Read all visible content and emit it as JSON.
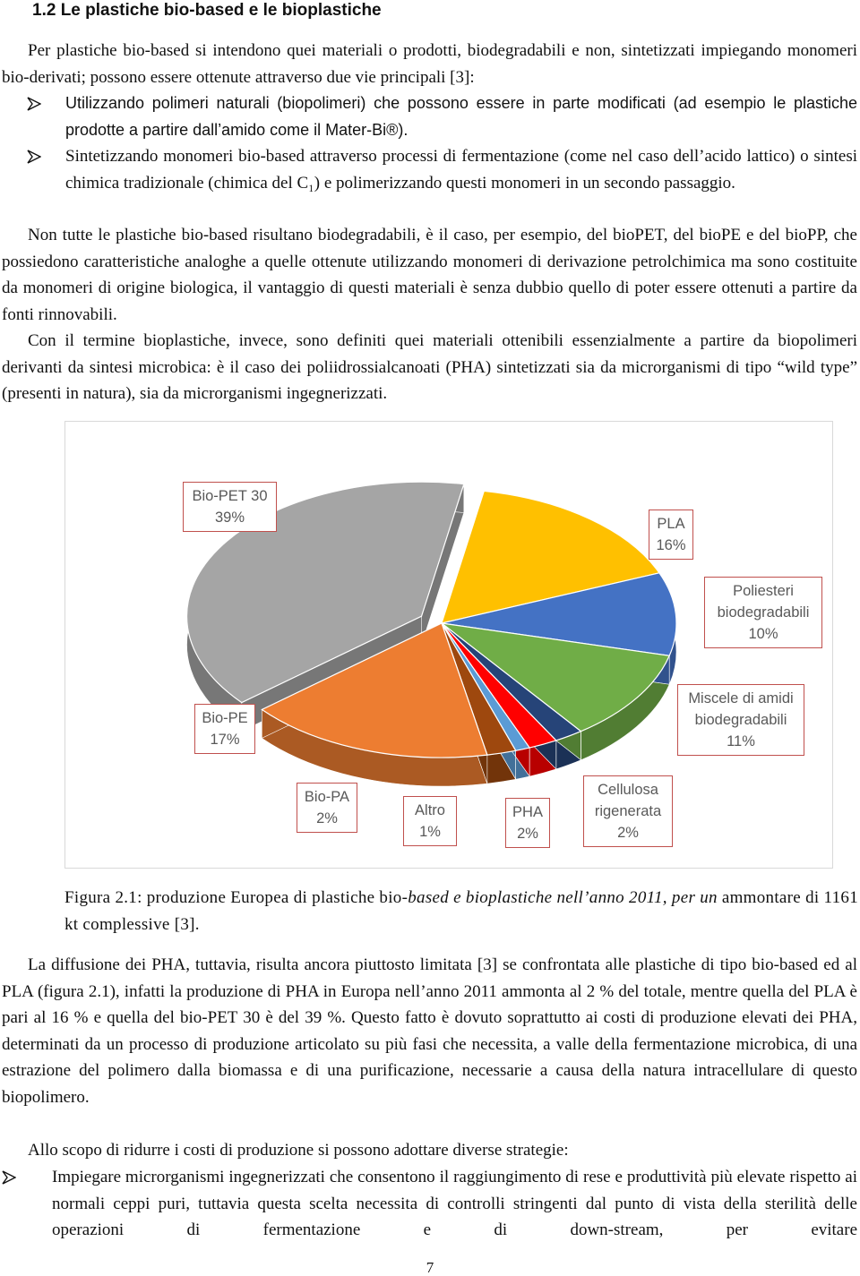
{
  "heading": "1.2 Le plastiche bio-based e le bioplastiche",
  "paragraph_1": "Per plastiche bio-based si intendono quei materiali o prodotti, biodegradabili e non, sintetizzati impiegando monomeri bio-derivati; possono essere ottenute attraverso due vie principali [3]:",
  "bullets_1": [
    "Utilizzando polimeri naturali (biopolimeri) che possono essere in parte modificati (ad esempio le plastiche prodotte a partire dall’amido come il Mater-Bi®).",
    "Sintetizzando monomeri bio-based attraverso processi di fermentazione (come nel caso dell’acido lattico) o sintesi chimica tradizionale (chimica del C₁) e polimerizzando questi monomeri in un secondo passaggio."
  ],
  "paragraph_2": "Non tutte le plastiche bio-based risultano biodegradabili, è il caso, per esempio, del bioPET, del bioPE e del bioPP, che possiedono caratteristiche analoghe a quelle ottenute utilizzando monomeri di derivazione petrolchimica ma sono costituite da monomeri di origine biologica, il vantaggio di questi materiali è senza dubbio quello di poter essere ottenuti a partire da fonti rinnovabili.",
  "paragraph_3": "Con il termine bioplastiche, invece, sono definiti quei materiali ottenibili essenzialmente a partire da biopolimeri derivanti da sintesi microbica: è il caso dei poliidrossialcanoati (PHA) sintetizzati sia da microrganismi di tipo “wild type” (presenti in natura), sia da microrganismi ingegnerizzati.",
  "chart_data": {
    "type": "pie",
    "categories": [
      "Bio-PET 30",
      "PLA",
      "Poliesteri biodegradabili",
      "Miscele di amidi biodegradabili",
      "Cellulosa rigenerata",
      "PHA",
      "Altro",
      "Bio-PA",
      "Bio-PE"
    ],
    "values": [
      39,
      16,
      10,
      11,
      2,
      2,
      1,
      2,
      17
    ],
    "value_labels": [
      "39%",
      "16%",
      "10%",
      "11%",
      "2%",
      "2%",
      "1%",
      "2%",
      "17%"
    ],
    "colors": [
      "#a5a5a5",
      "#ffc000",
      "#4472c4",
      "#70ad47",
      "#264478",
      "#ff0000",
      "#5b9bd5",
      "#9e480e",
      "#ed7d31"
    ]
  },
  "caption": [
    "Figura 2.1: produzione Europea di plastiche bio-",
    "based e bioplastiche nell’anno 2011, per un",
    " ammontare di 1161 kt complessive [3]."
  ],
  "paragraph_4": "La diffusione dei PHA, tuttavia, risulta ancora piuttosto limitata [3] se confrontata alle plastiche di tipo bio-based ed al PLA (figura 2.1), infatti la produzione di PHA in Europa nell’anno 2011 ammonta al 2 % del totale, mentre quella del PLA è pari al 16 % e quella del bio-PET 30 è del 39 %. Questo fatto è dovuto soprattutto ai costi di produzione elevati dei PHA, determinati da un processo di produzione articolato su più fasi che necessita, a valle della fermentazione microbica, di una estrazione del polimero dalla biomassa e di una purificazione, necessarie a causa della natura intracellulare di questo biopolimero.",
  "paragraph_5": "Allo scopo di ridurre i costi di produzione si possono adottare diverse strategie:",
  "bullets_2": [
    "Impiegare microrganismi ingegnerizzati che consentono il raggiungimento di rese e produttività più elevate rispetto ai normali ceppi puri, tuttavia questa scelta necessita di controlli stringenti dal punto di vista della sterilità delle operazioni di fermentazione e di down-stream, per evitare"
  ],
  "page_number": "7"
}
